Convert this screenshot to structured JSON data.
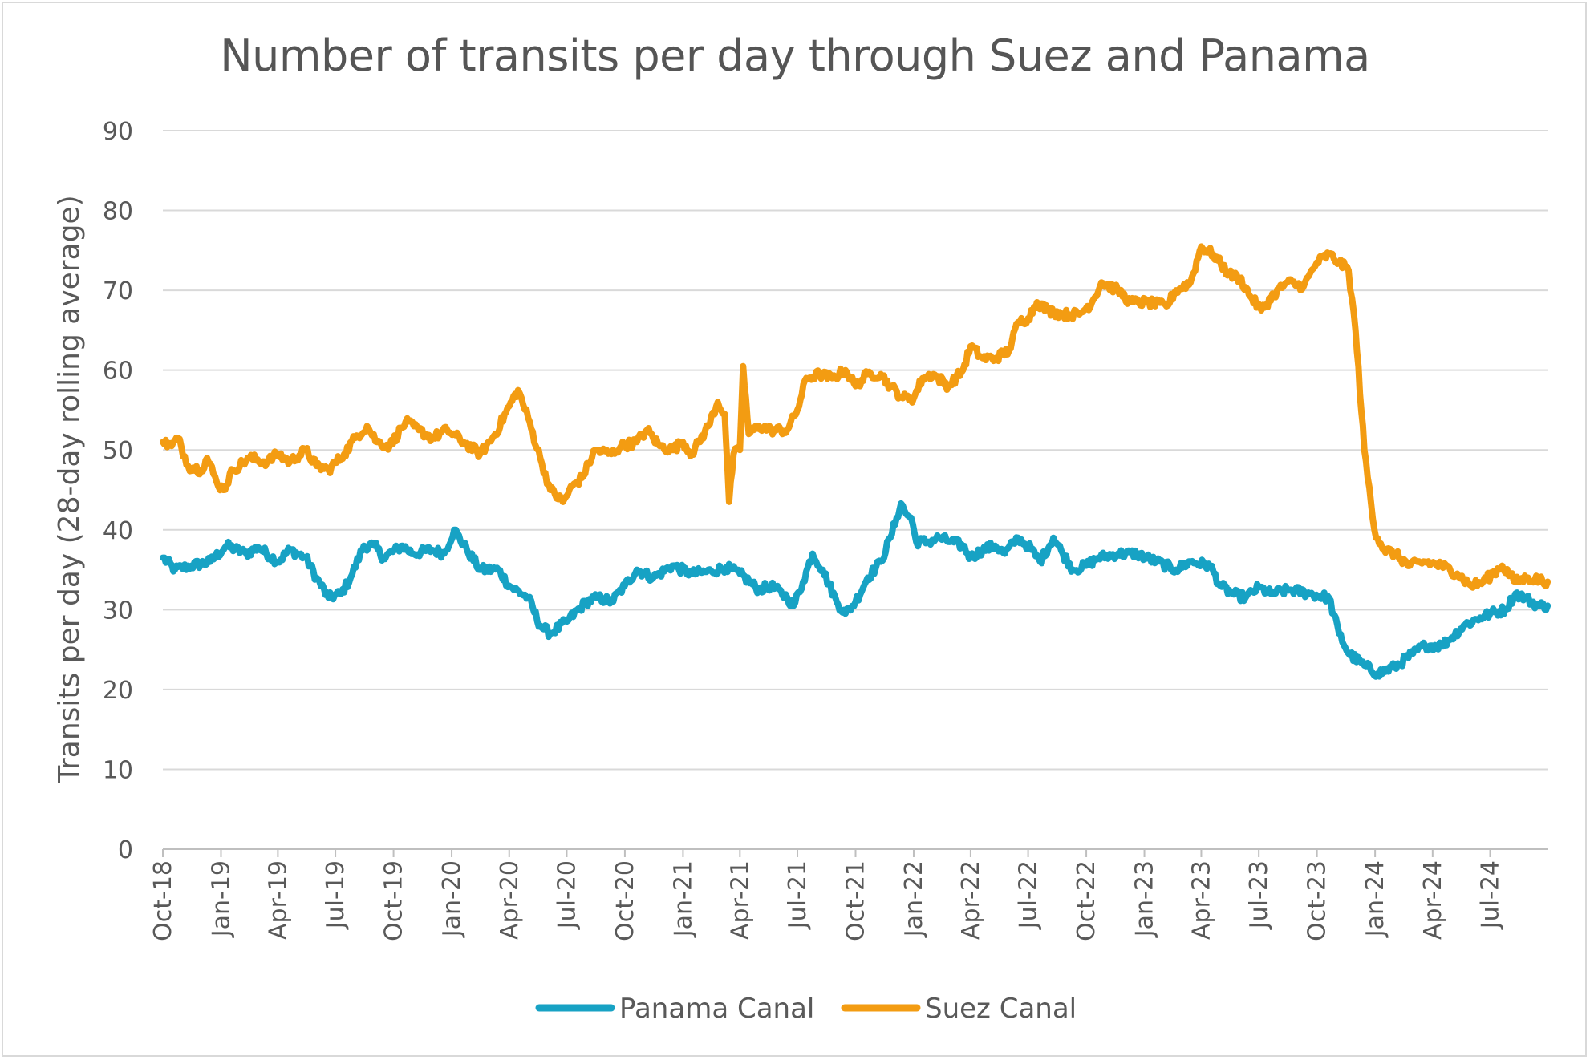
{
  "chart_data": {
    "type": "line",
    "title": "Number of transits per day through Suez and Panama",
    "xlabel": "",
    "ylabel": "Transits per day (28-day rolling average)",
    "ylim": [
      0,
      90
    ],
    "y_ticks": [
      0,
      10,
      20,
      30,
      40,
      50,
      60,
      70,
      80,
      90
    ],
    "x_range": [
      "2018-10",
      "2024-10"
    ],
    "x_ticks": [
      "Oct-18",
      "Jan-19",
      "Apr-19",
      "Jul-19",
      "Oct-19",
      "Jan-20",
      "Apr-20",
      "Jul-20",
      "Oct-20",
      "Jan-21",
      "Apr-21",
      "Jul-21",
      "Oct-21",
      "Jan-22",
      "Apr-22",
      "Jul-22",
      "Oct-22",
      "Jan-23",
      "Apr-23",
      "Jul-23",
      "Oct-23",
      "Jan-24",
      "Apr-24",
      "Jul-24"
    ],
    "grid": "horizontal",
    "legend_position": "bottom",
    "series": [
      {
        "name": "Panama Canal",
        "color": "#17a2c4",
        "points": [
          [
            "2018-10-01",
            36.5
          ],
          [
            "2018-10-20",
            35.0
          ],
          [
            "2018-11-15",
            35.5
          ],
          [
            "2018-12-15",
            36.0
          ],
          [
            "2019-01-10",
            38.0
          ],
          [
            "2019-02-10",
            37.0
          ],
          [
            "2019-03-01",
            37.8
          ],
          [
            "2019-04-01",
            36.0
          ],
          [
            "2019-04-20",
            37.5
          ],
          [
            "2019-05-15",
            36.5
          ],
          [
            "2019-06-01",
            34.0
          ],
          [
            "2019-06-20",
            31.5
          ],
          [
            "2019-07-10",
            32.0
          ],
          [
            "2019-07-25",
            34.0
          ],
          [
            "2019-08-15",
            38.0
          ],
          [
            "2019-09-01",
            38.0
          ],
          [
            "2019-09-15",
            36.5
          ],
          [
            "2019-10-15",
            38.0
          ],
          [
            "2019-11-01",
            37.0
          ],
          [
            "2019-12-01",
            37.5
          ],
          [
            "2019-12-20",
            37.0
          ],
          [
            "2020-01-05",
            40.0
          ],
          [
            "2020-01-25",
            37.5
          ],
          [
            "2020-02-15",
            35.0
          ],
          [
            "2020-03-15",
            35.0
          ],
          [
            "2020-04-01",
            33.0
          ],
          [
            "2020-05-01",
            31.5
          ],
          [
            "2020-05-20",
            28.0
          ],
          [
            "2020-06-05",
            27.0
          ],
          [
            "2020-07-01",
            28.5
          ],
          [
            "2020-08-01",
            31.0
          ],
          [
            "2020-08-20",
            31.5
          ],
          [
            "2020-09-10",
            31.0
          ],
          [
            "2020-10-01",
            33.0
          ],
          [
            "2020-10-20",
            35.0
          ],
          [
            "2020-11-15",
            34.0
          ],
          [
            "2020-12-15",
            35.5
          ],
          [
            "2021-01-15",
            34.5
          ],
          [
            "2021-02-15",
            34.8
          ],
          [
            "2021-03-10",
            35.3
          ],
          [
            "2021-04-01",
            34.5
          ],
          [
            "2021-05-01",
            32.5
          ],
          [
            "2021-05-20",
            33.0
          ],
          [
            "2021-06-15",
            31.5
          ],
          [
            "2021-06-25",
            30.5
          ],
          [
            "2021-07-10",
            33.5
          ],
          [
            "2021-07-25",
            37.0
          ],
          [
            "2021-08-10",
            35.0
          ],
          [
            "2021-09-01",
            31.0
          ],
          [
            "2021-09-15",
            29.5
          ],
          [
            "2021-10-01",
            31.0
          ],
          [
            "2021-10-20",
            34.0
          ],
          [
            "2021-11-10",
            36.0
          ],
          [
            "2021-11-25",
            39.0
          ],
          [
            "2021-12-05",
            41.5
          ],
          [
            "2021-12-12",
            43.3
          ],
          [
            "2021-12-20",
            42.0
          ],
          [
            "2021-12-28",
            41.5
          ],
          [
            "2022-01-05",
            38.5
          ],
          [
            "2022-01-25",
            38.5
          ],
          [
            "2022-02-10",
            39.0
          ],
          [
            "2022-03-01",
            38.5
          ],
          [
            "2022-03-20",
            38.0
          ],
          [
            "2022-04-01",
            36.5
          ],
          [
            "2022-04-20",
            37.5
          ],
          [
            "2022-05-10",
            38.0
          ],
          [
            "2022-05-25",
            37.0
          ],
          [
            "2022-06-15",
            39.0
          ],
          [
            "2022-07-01",
            38.0
          ],
          [
            "2022-07-20",
            36.0
          ],
          [
            "2022-08-10",
            39.0
          ],
          [
            "2022-08-25",
            37.0
          ],
          [
            "2022-09-10",
            35.0
          ],
          [
            "2022-10-01",
            35.5
          ],
          [
            "2022-10-20",
            36.5
          ],
          [
            "2022-11-20",
            37.0
          ],
          [
            "2022-12-20",
            37.0
          ],
          [
            "2023-01-20",
            36.0
          ],
          [
            "2023-02-20",
            35.0
          ],
          [
            "2023-03-15",
            36.0
          ],
          [
            "2023-04-15",
            35.5
          ],
          [
            "2023-05-01",
            33.0
          ],
          [
            "2023-05-20",
            32.0
          ],
          [
            "2023-06-10",
            31.5
          ],
          [
            "2023-07-01",
            32.8
          ],
          [
            "2023-07-20",
            32.0
          ],
          [
            "2023-08-20",
            32.5
          ],
          [
            "2023-09-20",
            32.0
          ],
          [
            "2023-10-20",
            31.5
          ],
          [
            "2023-11-05",
            27.0
          ],
          [
            "2023-11-20",
            24.5
          ],
          [
            "2023-12-15",
            23.0
          ],
          [
            "2024-01-05",
            22.0
          ],
          [
            "2024-02-01",
            22.8
          ],
          [
            "2024-03-01",
            24.5
          ],
          [
            "2024-03-20",
            25.5
          ],
          [
            "2024-04-15",
            25.5
          ],
          [
            "2024-05-01",
            26.5
          ],
          [
            "2024-05-20",
            28.0
          ],
          [
            "2024-06-15",
            29.0
          ],
          [
            "2024-07-01",
            29.5
          ],
          [
            "2024-07-25",
            30.0
          ],
          [
            "2024-08-10",
            32.0
          ],
          [
            "2024-08-25",
            31.5
          ],
          [
            "2024-09-15",
            30.5
          ],
          [
            "2024-09-30",
            30.5
          ]
        ]
      },
      {
        "name": "Suez Canal",
        "color": "#f39c12",
        "points": [
          [
            "2018-10-01",
            51.0
          ],
          [
            "2018-10-15",
            50.5
          ],
          [
            "2018-10-25",
            51.5
          ],
          [
            "2018-11-10",
            48.0
          ],
          [
            "2018-12-01",
            47.5
          ],
          [
            "2018-12-10",
            49.0
          ],
          [
            "2018-12-25",
            46.0
          ],
          [
            "2019-01-05",
            45.0
          ],
          [
            "2019-01-20",
            47.5
          ],
          [
            "2019-02-15",
            49.0
          ],
          [
            "2019-03-15",
            48.5
          ],
          [
            "2019-04-01",
            49.5
          ],
          [
            "2019-04-20",
            48.5
          ],
          [
            "2019-05-15",
            50.0
          ],
          [
            "2019-06-01",
            48.0
          ],
          [
            "2019-06-20",
            47.5
          ],
          [
            "2019-07-15",
            49.5
          ],
          [
            "2019-08-01",
            51.5
          ],
          [
            "2019-08-20",
            53.0
          ],
          [
            "2019-09-05",
            51.0
          ],
          [
            "2019-09-25",
            50.5
          ],
          [
            "2019-10-20",
            53.5
          ],
          [
            "2019-11-10",
            52.5
          ],
          [
            "2019-12-01",
            51.5
          ],
          [
            "2019-12-25",
            52.5
          ],
          [
            "2020-01-20",
            51.0
          ],
          [
            "2020-02-15",
            49.5
          ],
          [
            "2020-03-10",
            52.0
          ],
          [
            "2020-04-01",
            55.5
          ],
          [
            "2020-04-15",
            57.5
          ],
          [
            "2020-05-01",
            54.0
          ],
          [
            "2020-05-20",
            49.0
          ],
          [
            "2020-06-05",
            45.0
          ],
          [
            "2020-06-25",
            43.5
          ],
          [
            "2020-07-10",
            45.5
          ],
          [
            "2020-07-25",
            46.5
          ],
          [
            "2020-08-15",
            50.0
          ],
          [
            "2020-09-10",
            49.5
          ],
          [
            "2020-09-25",
            50.5
          ],
          [
            "2020-10-20",
            51.0
          ],
          [
            "2020-11-05",
            52.5
          ],
          [
            "2020-11-25",
            50.5
          ],
          [
            "2020-12-15",
            50.0
          ],
          [
            "2021-01-01",
            51.0
          ],
          [
            "2021-01-15",
            49.5
          ],
          [
            "2021-02-10",
            53.0
          ],
          [
            "2021-02-25",
            56.0
          ],
          [
            "2021-03-08",
            54.5
          ],
          [
            "2021-03-15",
            43.5
          ],
          [
            "2021-03-22",
            49.5
          ],
          [
            "2021-04-01",
            50.0
          ],
          [
            "2021-04-06",
            60.5
          ],
          [
            "2021-04-15",
            52.0
          ],
          [
            "2021-05-01",
            53.0
          ],
          [
            "2021-05-20",
            52.5
          ],
          [
            "2021-06-15",
            52.5
          ],
          [
            "2021-07-01",
            55.0
          ],
          [
            "2021-07-15",
            59.0
          ],
          [
            "2021-08-05",
            59.5
          ],
          [
            "2021-08-25",
            59.0
          ],
          [
            "2021-09-15",
            60.0
          ],
          [
            "2021-10-01",
            58.0
          ],
          [
            "2021-10-20",
            59.5
          ],
          [
            "2021-11-10",
            59.5
          ],
          [
            "2021-11-25",
            58.0
          ],
          [
            "2021-12-15",
            56.5
          ],
          [
            "2022-01-01",
            56.5
          ],
          [
            "2022-01-15",
            59.0
          ],
          [
            "2022-02-01",
            59.5
          ],
          [
            "2022-02-25",
            58.0
          ],
          [
            "2022-03-20",
            60.0
          ],
          [
            "2022-04-01",
            63.0
          ],
          [
            "2022-04-20",
            61.5
          ],
          [
            "2022-05-10",
            61.5
          ],
          [
            "2022-06-01",
            62.5
          ],
          [
            "2022-06-15",
            66.0
          ],
          [
            "2022-07-01",
            66.5
          ],
          [
            "2022-07-15",
            68.5
          ],
          [
            "2022-08-01",
            67.5
          ],
          [
            "2022-08-25",
            67.0
          ],
          [
            "2022-09-20",
            67.0
          ],
          [
            "2022-10-10",
            68.5
          ],
          [
            "2022-10-25",
            71.0
          ],
          [
            "2022-11-20",
            70.0
          ],
          [
            "2022-12-10",
            68.5
          ],
          [
            "2023-01-05",
            68.5
          ],
          [
            "2023-02-05",
            68.0
          ],
          [
            "2023-02-20",
            70.0
          ],
          [
            "2023-03-15",
            71.0
          ],
          [
            "2023-04-01",
            75.5
          ],
          [
            "2023-04-20",
            74.5
          ],
          [
            "2023-05-15",
            72.0
          ],
          [
            "2023-06-01",
            71.5
          ],
          [
            "2023-06-20",
            69.0
          ],
          [
            "2023-07-05",
            67.5
          ],
          [
            "2023-07-25",
            69.5
          ],
          [
            "2023-08-15",
            71.0
          ],
          [
            "2023-09-10",
            70.5
          ],
          [
            "2023-10-01",
            73.5
          ],
          [
            "2023-10-20",
            74.5
          ],
          [
            "2023-11-05",
            73.5
          ],
          [
            "2023-11-20",
            72.5
          ],
          [
            "2023-12-01",
            65.0
          ],
          [
            "2023-12-15",
            50.0
          ],
          [
            "2023-12-31",
            40.0
          ],
          [
            "2024-01-15",
            37.5
          ],
          [
            "2024-02-01",
            37.0
          ],
          [
            "2024-02-25",
            35.5
          ],
          [
            "2024-03-20",
            36.0
          ],
          [
            "2024-04-15",
            35.5
          ],
          [
            "2024-05-10",
            34.5
          ],
          [
            "2024-06-01",
            33.0
          ],
          [
            "2024-06-20",
            33.5
          ],
          [
            "2024-07-20",
            35.5
          ],
          [
            "2024-08-10",
            33.5
          ],
          [
            "2024-08-30",
            34.0
          ],
          [
            "2024-09-30",
            33.5
          ]
        ]
      }
    ]
  }
}
